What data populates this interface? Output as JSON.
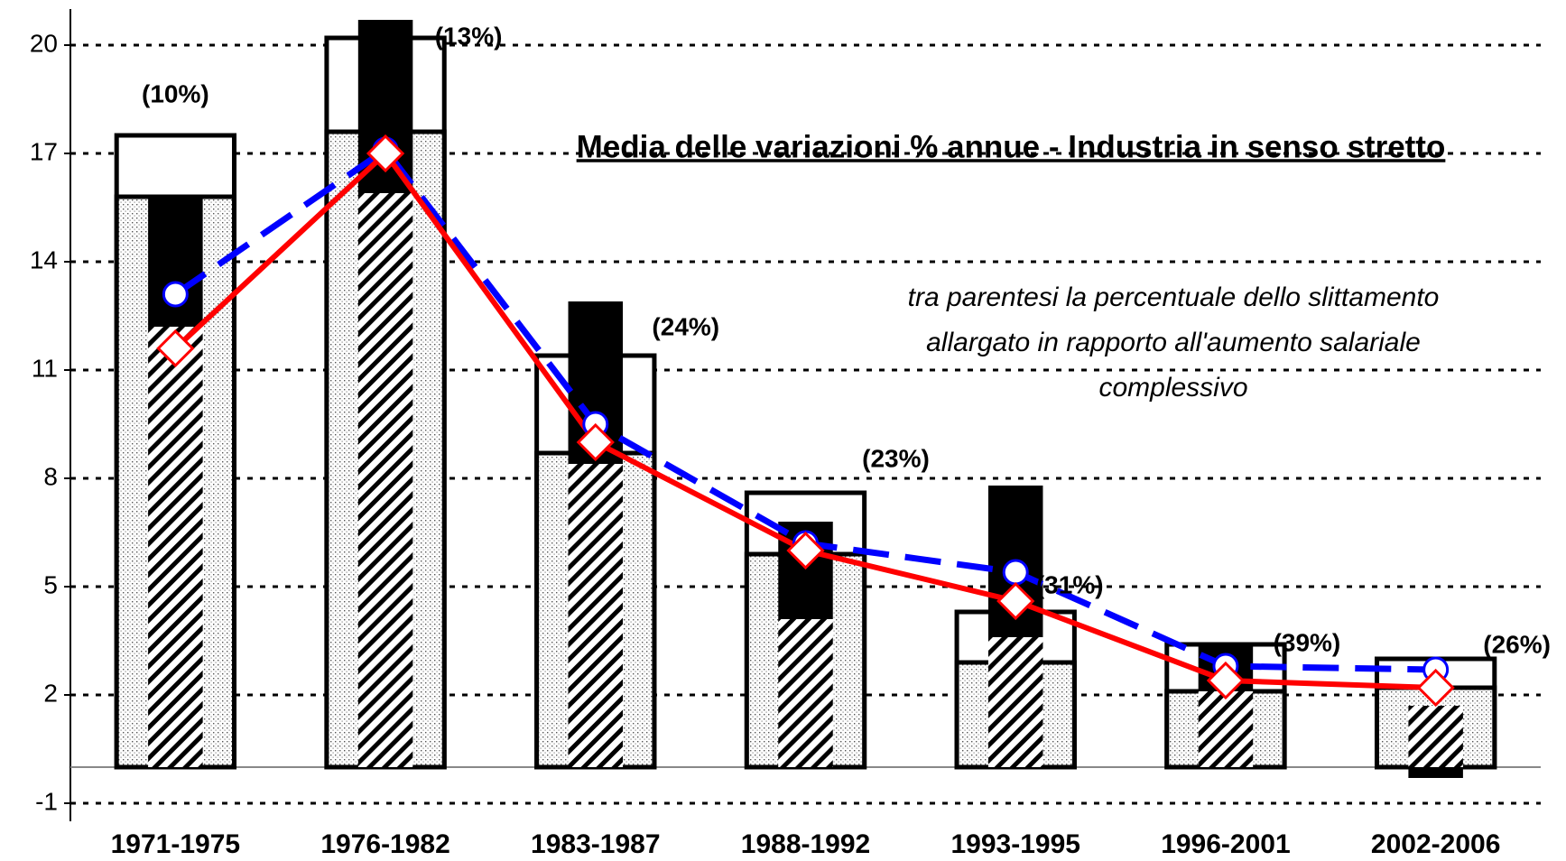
{
  "chart_data": {
    "type": "bar_line",
    "title": "Media delle variazioni % annue  -  Industria in senso stretto",
    "annotation": [
      "tra parentesi la percentuale dello slittamento",
      "allargato in rapporto all'aumento salariale",
      "complessivo"
    ],
    "categories": [
      "1971-1975",
      "1976-1982",
      "1983-1987",
      "1988-1992",
      "1993-1995",
      "1996-2001",
      "2002-2006"
    ],
    "bar_labels": [
      "(10%)",
      "(13%)",
      "(24%)",
      "(23%)",
      "(31%)",
      "(39%)",
      "(26%)"
    ],
    "series": [
      {
        "kind": "box",
        "color": "#ffffff",
        "values": [
          17.5,
          20.2,
          11.4,
          7.6,
          4.3,
          3.4,
          3.0
        ]
      },
      {
        "kind": "dotted",
        "color": "#ffffff",
        "values": [
          15.8,
          17.6,
          8.7,
          5.9,
          2.9,
          2.1,
          2.2
        ]
      },
      {
        "kind": "hatched",
        "color": "#000000",
        "values": [
          12.2,
          15.9,
          8.4,
          4.1,
          3.6,
          2.1,
          1.7
        ]
      },
      {
        "kind": "stacked",
        "color": "#000000",
        "values": [
          3.6,
          4.8,
          4.5,
          2.7,
          4.2,
          1.3,
          -0.3
        ]
      },
      {
        "kind": "line",
        "marker": "circle",
        "dashed": true,
        "color": "#0000ff",
        "values": [
          13.1,
          17.1,
          9.5,
          6.2,
          5.4,
          2.8,
          2.7
        ]
      },
      {
        "kind": "line",
        "marker": "diamond",
        "dashed": false,
        "color": "#ff0000",
        "values": [
          11.6,
          17.0,
          9.0,
          6.0,
          4.6,
          2.4,
          2.2
        ]
      }
    ],
    "ylim": [
      -1.5,
      21
    ],
    "yticks": [
      -1,
      2,
      5,
      8,
      11,
      14,
      17,
      20
    ],
    "grid": true
  }
}
